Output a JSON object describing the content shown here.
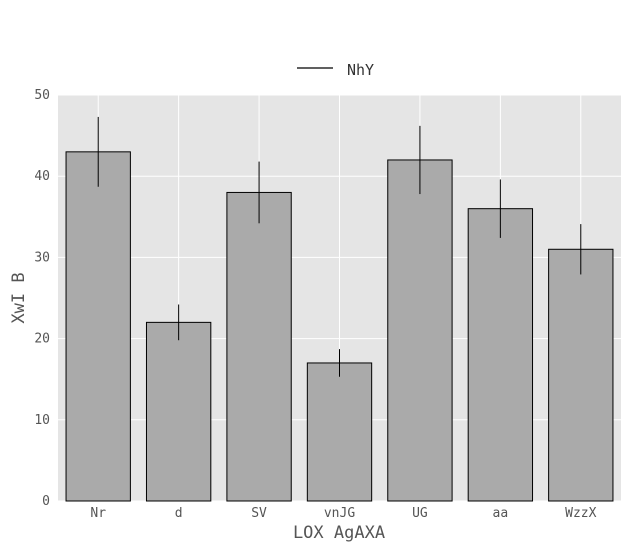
{
  "chart_data": {
    "type": "bar",
    "title": "",
    "xlabel": "LOX AgAXA",
    "ylabel": "XwI B",
    "categories": [
      "Nr",
      "d",
      "SV",
      "vnJG",
      "UG",
      "aa",
      "WzzX"
    ],
    "series": [
      {
        "name": "NhY",
        "values": [
          43,
          22,
          38,
          17,
          42,
          36,
          31
        ],
        "error": [
          4.3,
          2.2,
          3.8,
          1.7,
          4.2,
          3.6,
          3.1
        ]
      }
    ],
    "ylim": [
      0,
      50
    ],
    "yticks": [
      0,
      10,
      20,
      30,
      40,
      50
    ],
    "grid": true,
    "legend": "top-center",
    "colors": {
      "bar": "#aaaaaa",
      "bar_edge": "#000000",
      "plot_bg": "#e5e5e5",
      "grid": "#ffffff",
      "error": "#000000"
    }
  }
}
